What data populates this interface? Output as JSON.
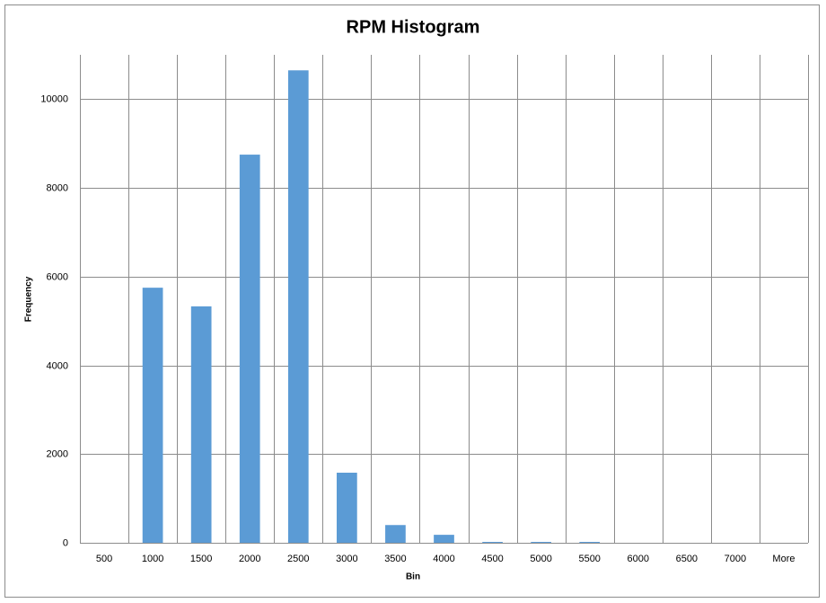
{
  "chart_data": {
    "type": "bar",
    "title": "RPM Histogram",
    "x_label": "Bin",
    "y_label": "Frequency",
    "categories": [
      "500",
      "1000",
      "1500",
      "2000",
      "2500",
      "3000",
      "3500",
      "4000",
      "4500",
      "5000",
      "5500",
      "6000",
      "6500",
      "7000",
      "More"
    ],
    "values": [
      0,
      5750,
      5330,
      8750,
      10650,
      1580,
      400,
      180,
      20,
      20,
      20,
      0,
      0,
      0,
      0
    ],
    "color": "#5b9bd5",
    "ylim": [
      0,
      11000
    ],
    "yticks": [
      0,
      2000,
      4000,
      6000,
      8000,
      10000
    ],
    "grid": true
  }
}
